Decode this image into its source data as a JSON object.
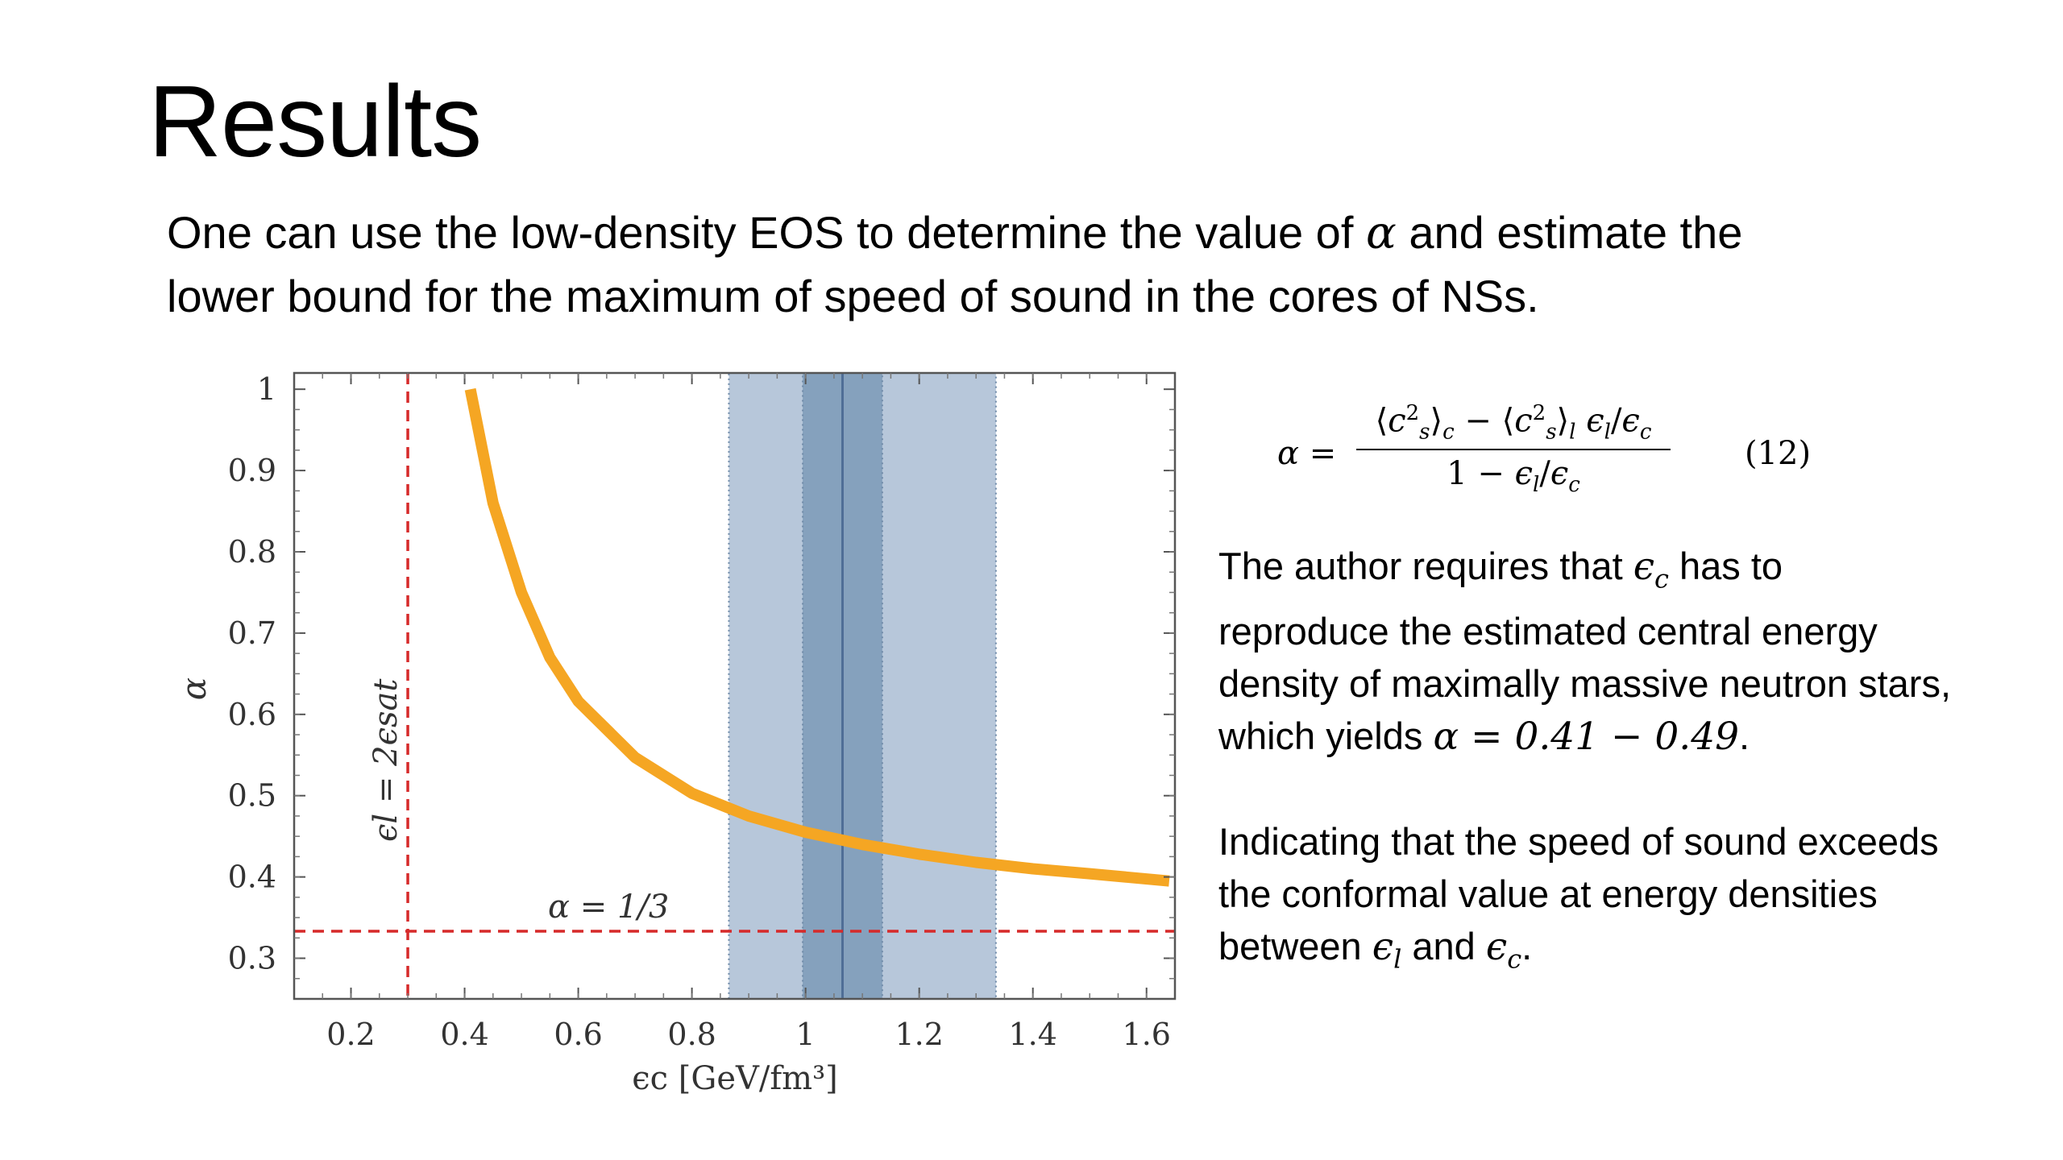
{
  "slide": {
    "title": "Results",
    "intro_line1_pre": "One can use the low-density EOS to determine the value of ",
    "intro_alpha": "α",
    "intro_line1_post": " and estimate the",
    "intro_line2": "lower bound for the maximum of speed of sound in the cores of NSs."
  },
  "equation": {
    "lhs": "α =",
    "numerator": "⟨c²ₛ⟩c − ⟨c²ₛ⟩l ϵl/ϵc",
    "denominator": "1 − ϵl/ϵc",
    "number": "(12)"
  },
  "paragraph1": {
    "pre": "The author requires that ",
    "eps": "ϵ",
    "sub_c": "c",
    "mid": " has to reproduce the estimated central energy density of maximally massive neutron stars, which yields ",
    "value": "α = 0.41 − 0.49",
    "post": "."
  },
  "paragraph2": {
    "pre": "Indicating that the speed of sound exceeds the conformal value at energy densities between ",
    "eps1": "ϵ",
    "sub_l": "l",
    "and": " and ",
    "eps2": "ϵ",
    "sub_c": "c",
    "post": "."
  },
  "chart_data": {
    "type": "line",
    "xlabel": "ϵc [GeV/fm³]",
    "ylabel": "α",
    "xlim": [
      0.1,
      1.65
    ],
    "ylim": [
      0.25,
      1.02
    ],
    "xticks": [
      0.2,
      0.4,
      0.6,
      0.8,
      1,
      1.2,
      1.4,
      1.6
    ],
    "xtick_labels": [
      "0.2",
      "0.4",
      "0.6",
      "0.8",
      "1",
      "1.2",
      "1.4",
      "1.6"
    ],
    "yticks": [
      0.3,
      0.4,
      0.5,
      0.6,
      0.7,
      0.8,
      0.9,
      1
    ],
    "ytick_labels": [
      "0.3",
      "0.4",
      "0.5",
      "0.6",
      "0.7",
      "0.8",
      "0.9",
      "1"
    ],
    "series": [
      {
        "color": "#f5a623",
        "x": [
          0.41,
          0.45,
          0.5,
          0.55,
          0.6,
          0.7,
          0.8,
          0.9,
          1.0,
          1.1,
          1.2,
          1.3,
          1.4,
          1.5,
          1.64
        ],
        "y": [
          1.0,
          0.86,
          0.75,
          0.67,
          0.616,
          0.547,
          0.503,
          0.475,
          0.455,
          0.44,
          0.428,
          0.418,
          0.41,
          0.404,
          0.395
        ]
      }
    ],
    "bands": [
      {
        "x0": 0.865,
        "x1": 1.335,
        "color": "#b7c7da"
      },
      {
        "x0": 0.995,
        "x1": 1.135,
        "color": "#85a1bd"
      }
    ],
    "vline": {
      "x": 1.065,
      "color": "#4f6e96"
    },
    "ref_vline": {
      "x": 0.3,
      "label": "ϵl = 2ϵsat",
      "color": "#d62a2a"
    },
    "ref_hline": {
      "y": 0.3333,
      "label": "α = 1/3",
      "color": "#d62a2a"
    }
  }
}
